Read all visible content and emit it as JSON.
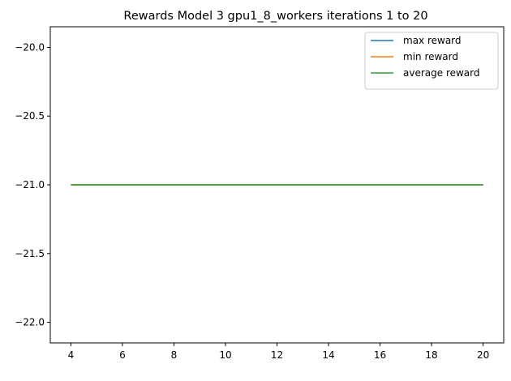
{
  "chart_data": {
    "type": "line",
    "title": "Rewards Model 3 gpu1_8_workers iterations 1 to 20",
    "xlabel": "",
    "ylabel": "",
    "x": [
      4,
      5,
      6,
      7,
      8,
      9,
      10,
      11,
      12,
      13,
      14,
      15,
      16,
      17,
      18,
      19,
      20
    ],
    "series": [
      {
        "name": "max reward",
        "color": "#1f77b4",
        "values": [
          -21,
          -21,
          -21,
          -21,
          -21,
          -21,
          -21,
          -21,
          -21,
          -21,
          -21,
          -21,
          -21,
          -21,
          -21,
          -21,
          -21
        ]
      },
      {
        "name": "min reward",
        "color": "#ff7f0e",
        "values": [
          -21,
          -21,
          -21,
          -21,
          -21,
          -21,
          -21,
          -21,
          -21,
          -21,
          -21,
          -21,
          -21,
          -21,
          -21,
          -21,
          -21
        ]
      },
      {
        "name": "average reward",
        "color": "#2ca02c",
        "values": [
          -21,
          -21,
          -21,
          -21,
          -21,
          -21,
          -21,
          -21,
          -21,
          -21,
          -21,
          -21,
          -21,
          -21,
          -21,
          -21,
          -21
        ]
      }
    ],
    "xlim": [
      3.2,
      20.8
    ],
    "ylim": [
      -22.15,
      -19.85
    ],
    "xticks": [
      "4",
      "6",
      "8",
      "10",
      "12",
      "14",
      "16",
      "18",
      "20"
    ],
    "yticks": [
      "−20.0",
      "−20.5",
      "−21.0",
      "−21.5",
      "−22.0"
    ],
    "grid": false,
    "legend_position": "top-right"
  }
}
